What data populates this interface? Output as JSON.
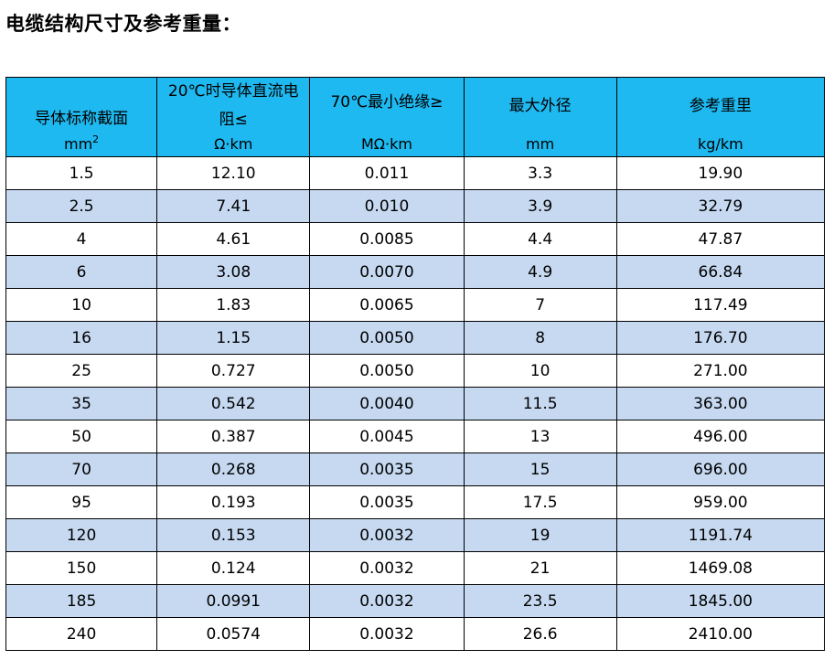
{
  "page": {
    "title": "电缆结构尺寸及参考重量："
  },
  "table": {
    "headers": [
      {
        "name": "导体标称截面",
        "unit": "mm",
        "unit_sup": "2"
      },
      {
        "name_line1": "20℃时导体直流电",
        "name_line2": "阻≤",
        "unit": "Ω·km"
      },
      {
        "name": "70℃最小绝缘≥",
        "unit": "MΩ·km"
      },
      {
        "name": "最大外径",
        "unit": "mm"
      },
      {
        "name": "参考重里",
        "unit": "kg/km"
      }
    ],
    "rows": [
      [
        "1.5",
        "12.10",
        "0.011",
        "3.3",
        "19.90"
      ],
      [
        "2.5",
        "7.41",
        "0.010",
        "3.9",
        "32.79"
      ],
      [
        "4",
        "4.61",
        "0.0085",
        "4.4",
        "47.87"
      ],
      [
        "6",
        "3.08",
        "0.0070",
        "4.9",
        "66.84"
      ],
      [
        "10",
        "1.83",
        "0.0065",
        "7",
        "117.49"
      ],
      [
        "16",
        "1.15",
        "0.0050",
        "8",
        "176.70"
      ],
      [
        "25",
        "0.727",
        "0.0050",
        "10",
        "271.00"
      ],
      [
        "35",
        "0.542",
        "0.0040",
        "11.5",
        "363.00"
      ],
      [
        "50",
        "0.387",
        "0.0045",
        "13",
        "496.00"
      ],
      [
        "70",
        "0.268",
        "0.0035",
        "15",
        "696.00"
      ],
      [
        "95",
        "0.193",
        "0.0035",
        "17.5",
        "959.00"
      ],
      [
        "120",
        "0.153",
        "0.0032",
        "19",
        "1191.74"
      ],
      [
        "150",
        "0.124",
        "0.0032",
        "21",
        "1469.08"
      ],
      [
        "185",
        "0.0991",
        "0.0032",
        "23.5",
        "1845.00"
      ],
      [
        "240",
        "0.0574",
        "0.0032",
        "26.6",
        "2410.00"
      ]
    ]
  },
  "colors": {
    "header_bg": "#1EB9F0",
    "stripe_bg": "#C6D9F1",
    "row_bg": "#FFFFFF",
    "border": "#000000"
  }
}
